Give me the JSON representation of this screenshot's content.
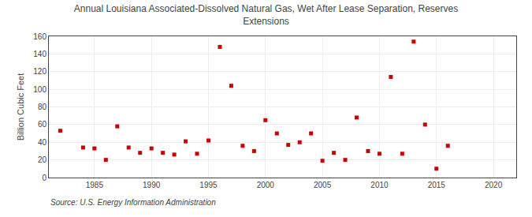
{
  "chart_data": {
    "type": "scatter",
    "title": "Annual Louisiana Associated-Dissolved Natural Gas, Wet After Lease Separation, Reserves\nExtensions",
    "y_label": "Billion Cubic Feet",
    "annotations": [
      "Source: U.S. Energy Information Administration"
    ],
    "x": [
      1982,
      1984,
      1985,
      1986,
      1987,
      1988,
      1989,
      1990,
      1991,
      1992,
      1993,
      1994,
      1995,
      1996,
      1997,
      1998,
      1999,
      2000,
      2001,
      2002,
      2003,
      2004,
      2005,
      2006,
      2007,
      2008,
      2009,
      2010,
      2011,
      2012,
      2013,
      2014,
      2015,
      2016
    ],
    "values": [
      53,
      34,
      33,
      20,
      58,
      34,
      28,
      33,
      28,
      26,
      41,
      27,
      42,
      148,
      104,
      36,
      30,
      65,
      50,
      37,
      40,
      50,
      19,
      28,
      20,
      68,
      30,
      27,
      114,
      27,
      154,
      60,
      10,
      36
    ],
    "color": "#cc0000",
    "marker": "square",
    "xlim": [
      1981,
      2022
    ],
    "xticks": [
      1985,
      1990,
      1995,
      2000,
      2005,
      2010,
      2015,
      2020
    ],
    "ylim": [
      0,
      160
    ],
    "yticks": [
      0,
      20,
      40,
      60,
      80,
      100,
      120,
      140,
      160
    ],
    "grid": true
  }
}
